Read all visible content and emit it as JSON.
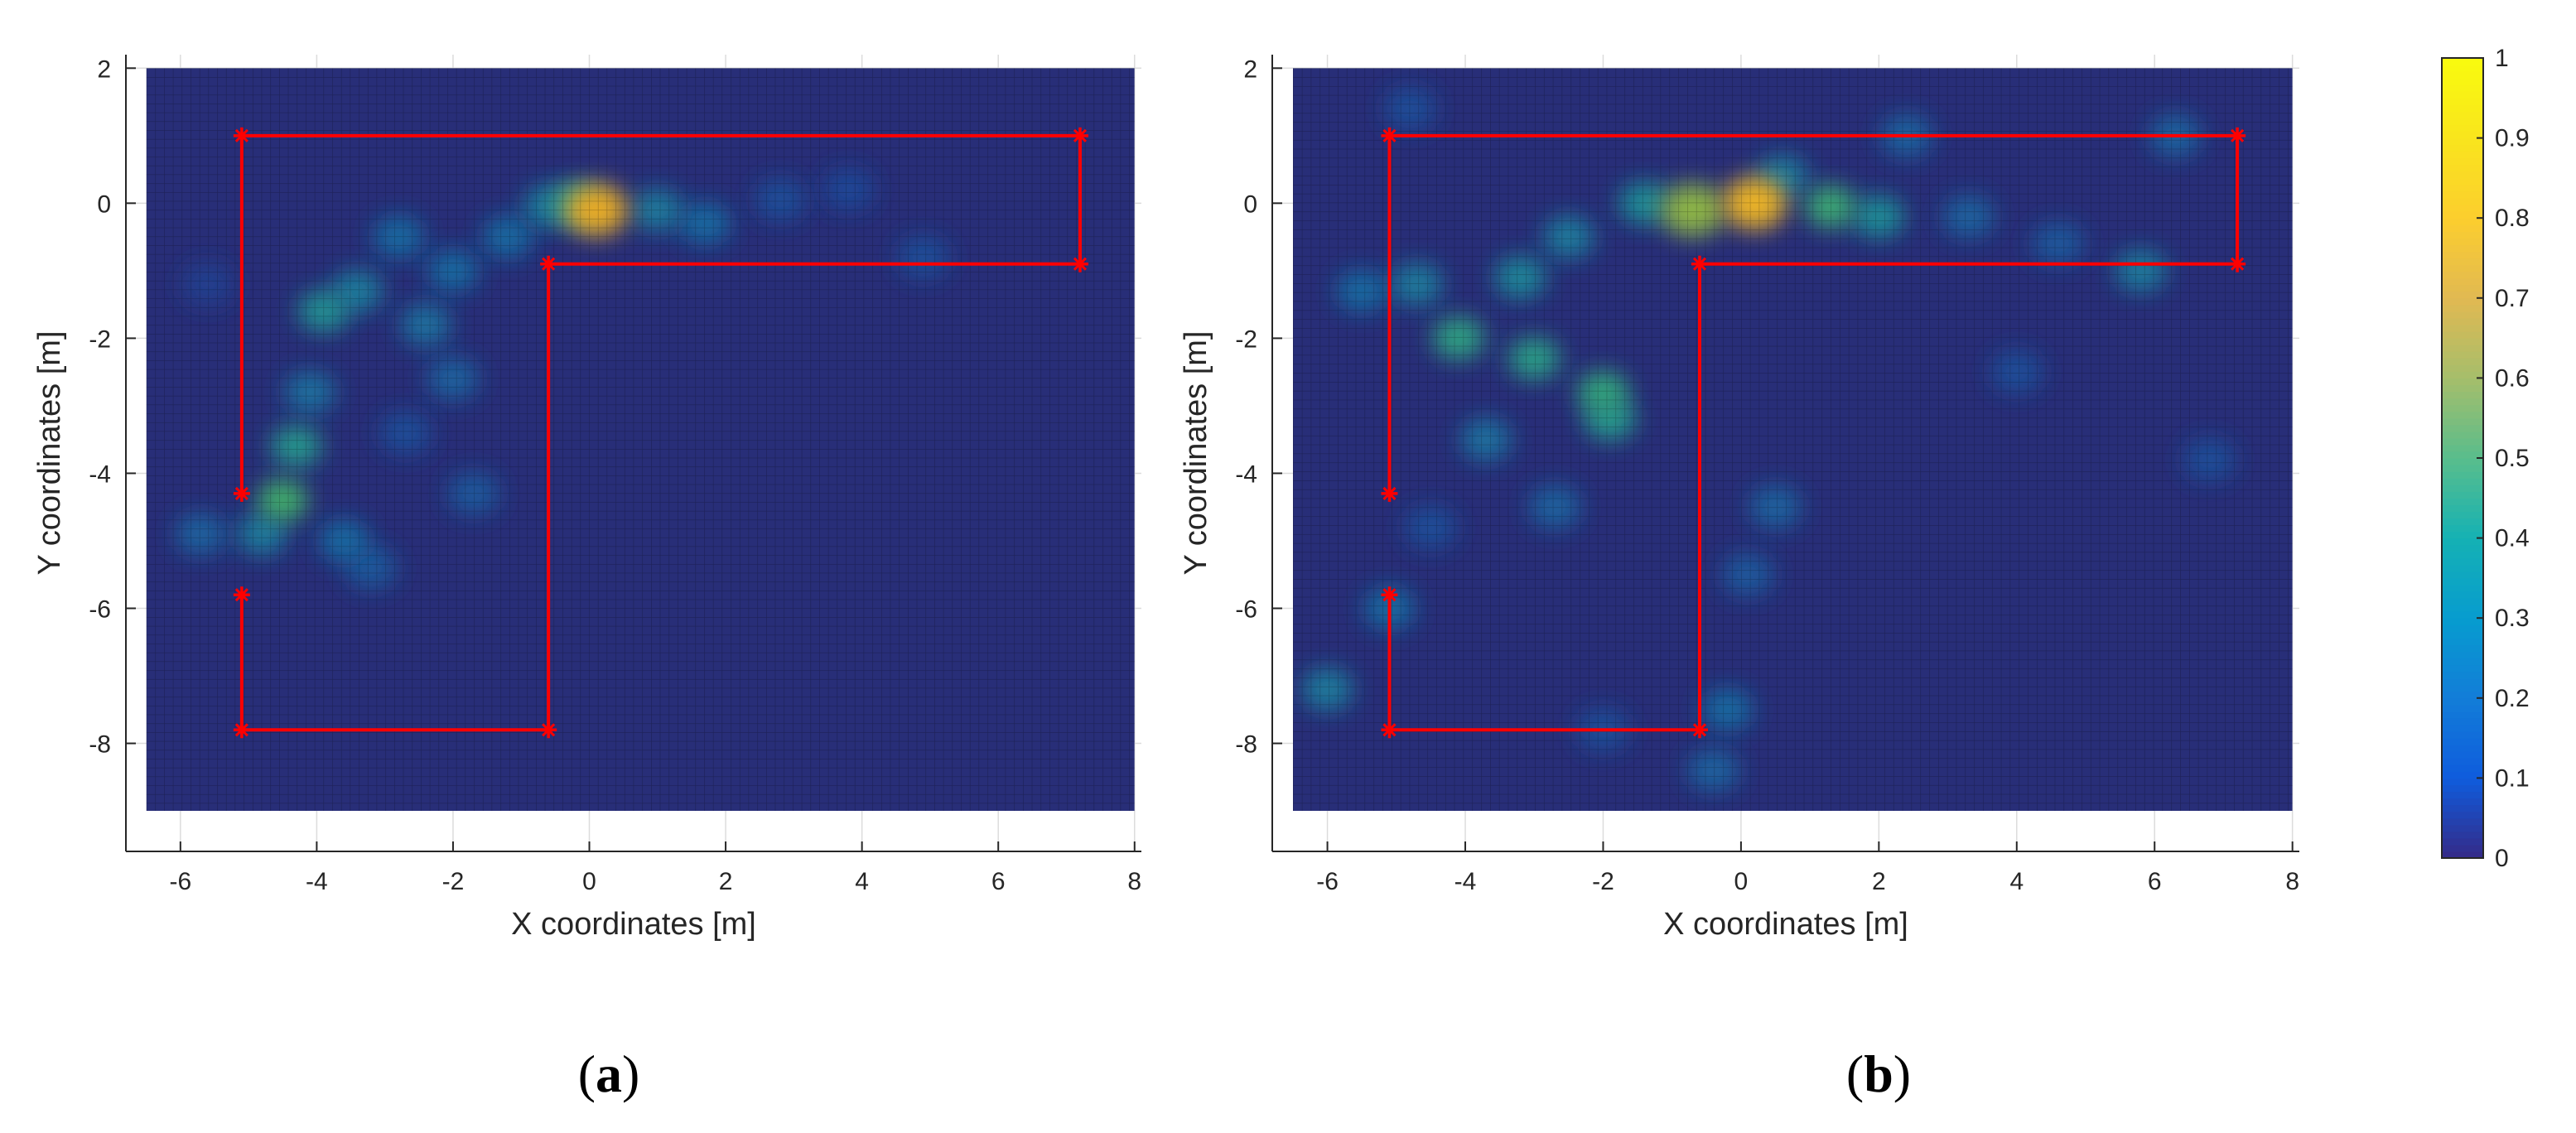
{
  "chart_data": [
    {
      "type": "heatmap",
      "caption": "a",
      "xlabel": "X coordinates [m]",
      "ylabel": "Y coordinates [m]",
      "xlim": [
        -6.8,
        8.1
      ],
      "ylim": [
        -9.6,
        2.2
      ],
      "grid_extent": {
        "x": [
          -6.5,
          8
        ],
        "y": [
          -9,
          2
        ]
      },
      "grid_step": 0.1,
      "grid": true,
      "xticks": [
        -6,
        -4,
        -2,
        0,
        2,
        4,
        6,
        8
      ],
      "yticks": [
        -8,
        -6,
        -4,
        -2,
        0,
        2
      ],
      "background_value": 0.12,
      "hotspots": [
        {
          "x": 0.1,
          "y": -0.1,
          "value": 0.8
        },
        {
          "x": -0.2,
          "y": 0.0,
          "value": 0.45
        },
        {
          "x": -0.6,
          "y": -0.05,
          "value": 0.35
        },
        {
          "x": 1.0,
          "y": -0.1,
          "value": 0.35
        },
        {
          "x": 1.7,
          "y": -0.3,
          "value": 0.3
        },
        {
          "x": 2.8,
          "y": 0.05,
          "value": 0.22
        },
        {
          "x": 3.8,
          "y": 0.2,
          "value": 0.2
        },
        {
          "x": 4.9,
          "y": -0.8,
          "value": 0.22
        },
        {
          "x": -1.2,
          "y": -0.5,
          "value": 0.3
        },
        {
          "x": -2.0,
          "y": -1.0,
          "value": 0.3
        },
        {
          "x": -2.8,
          "y": -0.5,
          "value": 0.3
        },
        {
          "x": -3.4,
          "y": -1.3,
          "value": 0.35
        },
        {
          "x": -3.9,
          "y": -1.6,
          "value": 0.42
        },
        {
          "x": -2.4,
          "y": -1.8,
          "value": 0.32
        },
        {
          "x": -2.0,
          "y": -2.6,
          "value": 0.28
        },
        {
          "x": -1.7,
          "y": -4.3,
          "value": 0.25
        },
        {
          "x": -4.1,
          "y": -2.8,
          "value": 0.32
        },
        {
          "x": -4.3,
          "y": -3.6,
          "value": 0.45
        },
        {
          "x": -4.5,
          "y": -4.4,
          "value": 0.58
        },
        {
          "x": -4.8,
          "y": -4.9,
          "value": 0.35
        },
        {
          "x": -5.7,
          "y": -4.9,
          "value": 0.28
        },
        {
          "x": -3.6,
          "y": -5.0,
          "value": 0.3
        },
        {
          "x": -3.2,
          "y": -5.4,
          "value": 0.25
        },
        {
          "x": -2.7,
          "y": -3.4,
          "value": 0.22
        },
        {
          "x": -5.6,
          "y": -1.2,
          "value": 0.18
        }
      ],
      "path": {
        "color": "#ff0000",
        "x": [
          -5.1,
          -5.1,
          7.2,
          7.2,
          -0.6,
          -0.6,
          -5.1,
          -5.1
        ],
        "y": [
          -4.3,
          1.0,
          1.0,
          -0.9,
          -0.9,
          -7.8,
          -7.8,
          -5.8
        ],
        "markers": "star"
      }
    },
    {
      "type": "heatmap",
      "caption": "b",
      "xlabel": "X coordinates [m]",
      "ylabel": "Y coordinates [m]",
      "xlim": [
        -6.8,
        8.1
      ],
      "ylim": [
        -9.6,
        2.2
      ],
      "grid_extent": {
        "x": [
          -6.5,
          8
        ],
        "y": [
          -9,
          2
        ]
      },
      "grid_step": 0.1,
      "grid": true,
      "xticks": [
        -6,
        -4,
        -2,
        0,
        2,
        4,
        6,
        8
      ],
      "yticks": [
        -8,
        -6,
        -4,
        -2,
        0,
        2
      ],
      "background_value": 0.12,
      "hotspots": [
        {
          "x": 0.2,
          "y": 0.0,
          "value": 0.82
        },
        {
          "x": -0.7,
          "y": -0.1,
          "value": 0.7
        },
        {
          "x": 1.3,
          "y": -0.05,
          "value": 0.55
        },
        {
          "x": 2.0,
          "y": -0.2,
          "value": 0.4
        },
        {
          "x": -1.4,
          "y": 0.0,
          "value": 0.4
        },
        {
          "x": 0.6,
          "y": 0.4,
          "value": 0.35
        },
        {
          "x": 2.4,
          "y": 1.0,
          "value": 0.28
        },
        {
          "x": 5.8,
          "y": -1.0,
          "value": 0.35
        },
        {
          "x": 4.6,
          "y": -0.6,
          "value": 0.25
        },
        {
          "x": 6.3,
          "y": 1.0,
          "value": 0.28
        },
        {
          "x": 3.3,
          "y": -0.2,
          "value": 0.28
        },
        {
          "x": -2.5,
          "y": -0.5,
          "value": 0.35
        },
        {
          "x": -4.1,
          "y": -2.0,
          "value": 0.5
        },
        {
          "x": -3.0,
          "y": -2.3,
          "value": 0.48
        },
        {
          "x": -2.0,
          "y": -2.8,
          "value": 0.52
        },
        {
          "x": -1.9,
          "y": -3.2,
          "value": 0.45
        },
        {
          "x": -3.2,
          "y": -1.1,
          "value": 0.38
        },
        {
          "x": -4.7,
          "y": -1.2,
          "value": 0.35
        },
        {
          "x": -5.5,
          "y": -1.3,
          "value": 0.3
        },
        {
          "x": -3.7,
          "y": -3.5,
          "value": 0.32
        },
        {
          "x": -2.7,
          "y": -4.5,
          "value": 0.28
        },
        {
          "x": 0.5,
          "y": -4.5,
          "value": 0.28
        },
        {
          "x": 0.1,
          "y": -5.5,
          "value": 0.25
        },
        {
          "x": -0.2,
          "y": -7.5,
          "value": 0.3
        },
        {
          "x": -0.4,
          "y": -8.4,
          "value": 0.28
        },
        {
          "x": -5.1,
          "y": -6.0,
          "value": 0.3
        },
        {
          "x": -6.0,
          "y": -7.2,
          "value": 0.35
        },
        {
          "x": -2.0,
          "y": -7.8,
          "value": 0.22
        },
        {
          "x": -4.5,
          "y": -4.8,
          "value": 0.22
        },
        {
          "x": 4.0,
          "y": -2.5,
          "value": 0.22
        },
        {
          "x": 6.8,
          "y": -3.8,
          "value": 0.22
        },
        {
          "x": -4.8,
          "y": 1.4,
          "value": 0.22
        }
      ],
      "path": {
        "color": "#ff0000",
        "x": [
          -5.1,
          -5.1,
          7.2,
          7.2,
          -0.6,
          -0.6,
          -5.1,
          -5.1
        ],
        "y": [
          -4.3,
          1.0,
          1.0,
          -0.9,
          -0.9,
          -7.8,
          -7.8,
          -5.8
        ],
        "markers": "star"
      }
    }
  ],
  "colorbar": {
    "min": 0,
    "max": 1,
    "ticks": [
      "0",
      "0.1",
      "0.2",
      "0.3",
      "0.4",
      "0.5",
      "0.6",
      "0.7",
      "0.8",
      "0.9",
      "1"
    ],
    "colormap": "parula"
  },
  "captions": {
    "a": {
      "open": "(",
      "letter": "a",
      "close": ")"
    },
    "b": {
      "open": "(",
      "letter": "b",
      "close": ")"
    }
  }
}
